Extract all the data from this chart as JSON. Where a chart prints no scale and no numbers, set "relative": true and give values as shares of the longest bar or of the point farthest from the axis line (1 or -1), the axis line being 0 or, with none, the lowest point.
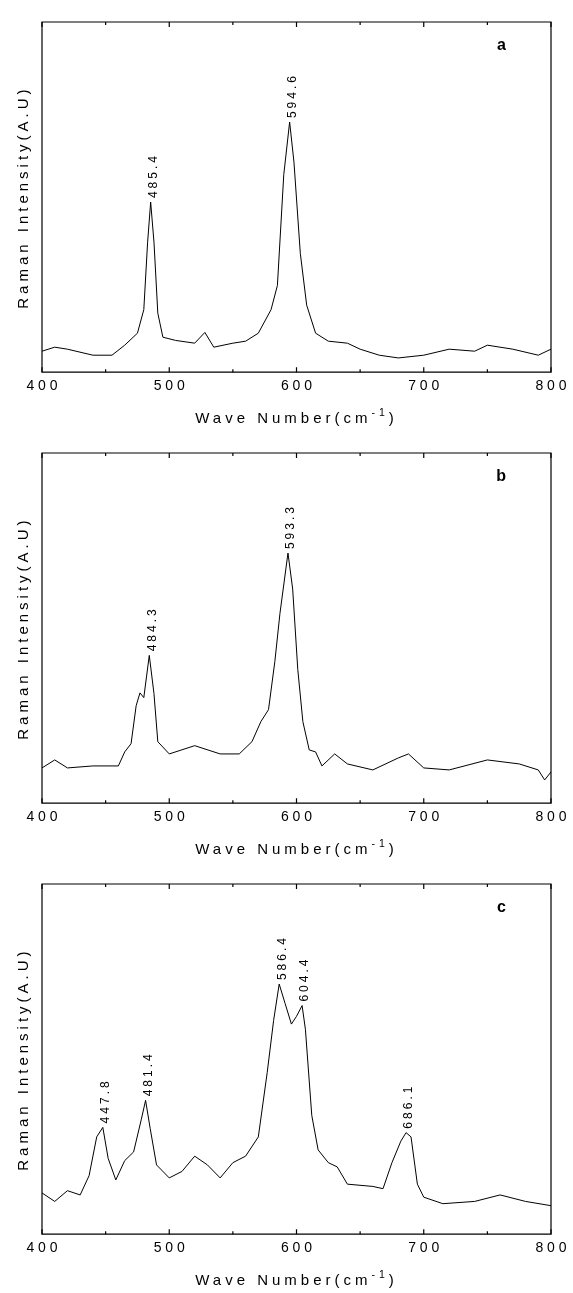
{
  "chart_data": [
    {
      "type": "line",
      "title": "a",
      "xlabel": "Wave Number(cm$^{-1}$)",
      "ylabel": "Raman Intensity(A.U)",
      "relative": true,
      "tick_labels": "x",
      "grid": false,
      "legend": false,
      "marker": "none",
      "line_style": "solid",
      "xlim": [
        400,
        800
      ],
      "xticks": [
        400,
        {
          "value": 450,
          "label": null
        },
        500,
        {
          "value": 550,
          "label": null
        },
        600,
        {
          "value": 650,
          "label": null
        },
        700,
        {
          "value": 750,
          "label": null
        },
        800
      ],
      "series": [
        {
          "color": "#000000",
          "x": [
            400,
            410,
            420,
            440,
            455,
            465,
            475,
            480,
            483,
            485.4,
            488,
            491,
            495,
            505,
            520,
            528,
            535,
            550,
            560,
            570,
            580,
            585,
            590,
            594.6,
            598,
            603,
            608,
            615,
            625,
            640,
            650,
            665,
            680,
            700,
            720,
            740,
            750,
            770,
            790,
            800
          ],
          "values": [
            0.084,
            0.1,
            0.092,
            0.068,
            0.068,
            0.108,
            0.156,
            0.25,
            0.52,
            0.68,
            0.52,
            0.236,
            0.14,
            0.127,
            0.116,
            0.159,
            0.1,
            0.116,
            0.124,
            0.156,
            0.25,
            0.347,
            0.79,
            1,
            0.84,
            0.475,
            0.268,
            0.156,
            0.124,
            0.116,
            0.092,
            0.068,
            0.057,
            0.068,
            0.092,
            0.084,
            0.108,
            0.092,
            0.068,
            0.092
          ]
        }
      ],
      "annotations": [
        {
          "text": "485.4",
          "x": 485.4,
          "y": 0.68
        },
        {
          "text": "594.6",
          "x": 594.6,
          "y": 1
        }
      ]
    },
    {
      "type": "line",
      "title": "b",
      "xlabel": "Wave Number(cm$^{-1}$)",
      "ylabel": "Raman Intensity(A.U)",
      "relative": true,
      "tick_labels": "x",
      "grid": false,
      "legend": false,
      "marker": "none",
      "line_style": "solid",
      "xlim": [
        400,
        800
      ],
      "xticks": [
        400,
        {
          "value": 450,
          "label": null
        },
        500,
        {
          "value": 550,
          "label": null
        },
        600,
        {
          "value": 650,
          "label": null
        },
        700,
        {
          "value": 750,
          "label": null
        },
        800
      ],
      "series": [
        {
          "color": "#000000",
          "x": [
            400,
            410,
            420,
            440,
            460,
            465,
            470,
            474,
            477,
            480,
            484.3,
            488,
            491,
            500,
            520,
            540,
            555,
            565,
            572,
            578,
            583,
            587,
            593.3,
            597,
            601,
            605,
            610,
            615,
            620,
            630,
            640,
            660,
            680,
            688,
            700,
            720,
            750,
            775,
            790,
            795,
            800
          ],
          "values": [
            0.141,
            0.173,
            0.141,
            0.149,
            0.149,
            0.205,
            0.238,
            0.39,
            0.441,
            0.422,
            0.591,
            0.438,
            0.246,
            0.197,
            0.23,
            0.197,
            0.197,
            0.246,
            0.326,
            0.374,
            0.567,
            0.759,
            1,
            0.856,
            0.535,
            0.326,
            0.213,
            0.205,
            0.149,
            0.197,
            0.157,
            0.133,
            0.181,
            0.197,
            0.141,
            0.133,
            0.173,
            0.157,
            0.133,
            0.093,
            0.125
          ]
        }
      ],
      "annotations": [
        {
          "text": "484.3",
          "x": 484.3,
          "y": 0.591
        },
        {
          "text": "593.3",
          "x": 593.3,
          "y": 1
        }
      ]
    },
    {
      "type": "line",
      "title": "c",
      "xlabel": "Wave Number(cm$^{-1}$)",
      "ylabel": "Raman Intensity(A.U)",
      "relative": true,
      "tick_labels": "x",
      "grid": false,
      "legend": false,
      "marker": "none",
      "line_style": "solid",
      "xlim": [
        400,
        800
      ],
      "xticks": [
        400,
        {
          "value": 450,
          "label": null
        },
        500,
        {
          "value": 550,
          "label": null
        },
        600,
        {
          "value": 650,
          "label": null
        },
        700,
        {
          "value": 750,
          "label": null
        },
        800
      ],
      "series": [
        {
          "color": "#000000",
          "x": [
            400,
            410,
            420,
            430,
            437,
            443,
            447.8,
            452,
            458,
            465,
            472,
            478,
            481.4,
            485,
            490,
            500,
            510,
            520,
            530,
            540,
            550,
            560,
            570,
            577,
            582,
            586.4,
            591,
            596,
            600,
            604.4,
            607,
            612,
            617,
            625,
            632,
            640,
            660,
            668,
            675,
            682,
            686.1,
            690,
            695,
            700,
            715,
            740,
            760,
            780,
            800
          ],
          "values": [
            0.165,
            0.131,
            0.174,
            0.157,
            0.234,
            0.389,
            0.427,
            0.303,
            0.217,
            0.294,
            0.329,
            0.458,
            0.535,
            0.423,
            0.277,
            0.225,
            0.251,
            0.312,
            0.277,
            0.225,
            0.286,
            0.312,
            0.389,
            0.647,
            0.854,
            1,
            0.923,
            0.84,
            0.871,
            0.914,
            0.819,
            0.475,
            0.337,
            0.286,
            0.269,
            0.2,
            0.191,
            0.182,
            0.286,
            0.372,
            0.406,
            0.389,
            0.2,
            0.148,
            0.122,
            0.131,
            0.157,
            0.131,
            0.114
          ]
        }
      ],
      "annotations": [
        {
          "text": "447.8",
          "x": 447.8,
          "y": 0.427
        },
        {
          "text": "481.4",
          "x": 481.4,
          "y": 0.535
        },
        {
          "text": "586.4",
          "x": 586.4,
          "y": 1
        },
        {
          "text": "604.4",
          "x": 604.4,
          "y": 0.914
        },
        {
          "text": "686.1",
          "x": 686.1,
          "y": 0.406
        }
      ]
    }
  ]
}
